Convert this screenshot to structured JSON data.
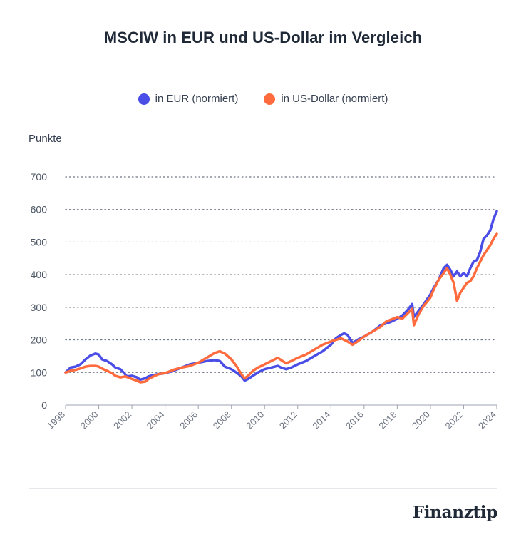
{
  "title": "MSCIW in EUR und US-Dollar im Vergleich",
  "brand": "Finanztip",
  "colors": {
    "eur": "#4a4de6",
    "usd": "#ff6b3d",
    "grid": "#6b7280",
    "axis": "#9ca3af"
  },
  "chart_data": {
    "type": "line",
    "ylabel": "Punkte",
    "ylim": [
      0,
      700
    ],
    "xlim": [
      1998,
      2024
    ],
    "yticks": [
      0,
      100,
      200,
      300,
      400,
      500,
      600,
      700
    ],
    "xticks": [
      1998,
      2000,
      2002,
      2004,
      2006,
      2008,
      2010,
      2012,
      2014,
      2016,
      2018,
      2020,
      2022,
      2024
    ],
    "grid": "horizontal dotted",
    "legend_position": "top-center",
    "series": [
      {
        "name": "in EUR (normiert)",
        "color": "#4a4de6",
        "points": [
          [
            1998.0,
            100
          ],
          [
            1998.3,
            115
          ],
          [
            1998.6,
            118
          ],
          [
            1998.9,
            125
          ],
          [
            1999.2,
            140
          ],
          [
            1999.5,
            152
          ],
          [
            1999.8,
            158
          ],
          [
            2000.0,
            155
          ],
          [
            2000.2,
            140
          ],
          [
            2000.5,
            135
          ],
          [
            2000.8,
            125
          ],
          [
            2001.0,
            115
          ],
          [
            2001.3,
            110
          ],
          [
            2001.5,
            100
          ],
          [
            2001.7,
            88
          ],
          [
            2002.0,
            90
          ],
          [
            2002.3,
            85
          ],
          [
            2002.5,
            78
          ],
          [
            2002.8,
            82
          ],
          [
            2003.0,
            88
          ],
          [
            2003.3,
            92
          ],
          [
            2003.6,
            95
          ],
          [
            2004.0,
            98
          ],
          [
            2004.5,
            105
          ],
          [
            2005.0,
            115
          ],
          [
            2005.5,
            125
          ],
          [
            2006.0,
            130
          ],
          [
            2006.5,
            135
          ],
          [
            2007.0,
            138
          ],
          [
            2007.3,
            135
          ],
          [
            2007.6,
            118
          ],
          [
            2008.0,
            110
          ],
          [
            2008.3,
            100
          ],
          [
            2008.6,
            88
          ],
          [
            2008.8,
            75
          ],
          [
            2009.0,
            80
          ],
          [
            2009.3,
            90
          ],
          [
            2009.6,
            100
          ],
          [
            2010.0,
            110
          ],
          [
            2010.4,
            115
          ],
          [
            2010.8,
            120
          ],
          [
            2011.0,
            115
          ],
          [
            2011.3,
            110
          ],
          [
            2011.6,
            115
          ],
          [
            2012.0,
            125
          ],
          [
            2012.5,
            135
          ],
          [
            2013.0,
            150
          ],
          [
            2013.5,
            165
          ],
          [
            2014.0,
            185
          ],
          [
            2014.3,
            205
          ],
          [
            2014.6,
            215
          ],
          [
            2014.8,
            220
          ],
          [
            2015.0,
            215
          ],
          [
            2015.3,
            190
          ],
          [
            2015.6,
            200
          ],
          [
            2016.0,
            210
          ],
          [
            2016.5,
            225
          ],
          [
            2017.0,
            245
          ],
          [
            2017.3,
            250
          ],
          [
            2017.6,
            255
          ],
          [
            2018.0,
            265
          ],
          [
            2018.3,
            275
          ],
          [
            2018.6,
            290
          ],
          [
            2018.9,
            310
          ],
          [
            2019.0,
            270
          ],
          [
            2019.3,
            290
          ],
          [
            2019.6,
            310
          ],
          [
            2020.0,
            340
          ],
          [
            2020.2,
            360
          ],
          [
            2020.5,
            385
          ],
          [
            2020.8,
            420
          ],
          [
            2021.0,
            430
          ],
          [
            2021.2,
            415
          ],
          [
            2021.4,
            395
          ],
          [
            2021.6,
            410
          ],
          [
            2021.8,
            395
          ],
          [
            2022.0,
            405
          ],
          [
            2022.2,
            395
          ],
          [
            2022.4,
            420
          ],
          [
            2022.6,
            440
          ],
          [
            2022.8,
            445
          ],
          [
            2023.0,
            470
          ],
          [
            2023.2,
            510
          ],
          [
            2023.4,
            520
          ],
          [
            2023.6,
            535
          ],
          [
            2023.8,
            570
          ],
          [
            2024.0,
            595
          ]
        ]
      },
      {
        "name": "in US-Dollar (normiert)",
        "color": "#ff6b3d",
        "points": [
          [
            1998.0,
            100
          ],
          [
            1998.3,
            105
          ],
          [
            1998.6,
            108
          ],
          [
            1998.9,
            112
          ],
          [
            1999.2,
            118
          ],
          [
            1999.5,
            120
          ],
          [
            1999.8,
            120
          ],
          [
            2000.0,
            118
          ],
          [
            2000.2,
            112
          ],
          [
            2000.5,
            105
          ],
          [
            2000.8,
            98
          ],
          [
            2001.0,
            90
          ],
          [
            2001.3,
            85
          ],
          [
            2001.6,
            88
          ],
          [
            2001.9,
            82
          ],
          [
            2002.0,
            80
          ],
          [
            2002.3,
            75
          ],
          [
            2002.5,
            70
          ],
          [
            2002.8,
            72
          ],
          [
            2003.0,
            80
          ],
          [
            2003.3,
            88
          ],
          [
            2003.6,
            95
          ],
          [
            2004.0,
            98
          ],
          [
            2004.5,
            108
          ],
          [
            2005.0,
            115
          ],
          [
            2005.5,
            120
          ],
          [
            2006.0,
            130
          ],
          [
            2006.5,
            145
          ],
          [
            2007.0,
            160
          ],
          [
            2007.3,
            165
          ],
          [
            2007.6,
            158
          ],
          [
            2008.0,
            140
          ],
          [
            2008.3,
            120
          ],
          [
            2008.6,
            95
          ],
          [
            2008.8,
            82
          ],
          [
            2009.0,
            90
          ],
          [
            2009.3,
            105
          ],
          [
            2009.6,
            115
          ],
          [
            2010.0,
            125
          ],
          [
            2010.4,
            135
          ],
          [
            2010.8,
            145
          ],
          [
            2011.0,
            138
          ],
          [
            2011.3,
            128
          ],
          [
            2011.6,
            135
          ],
          [
            2012.0,
            145
          ],
          [
            2012.5,
            155
          ],
          [
            2013.0,
            170
          ],
          [
            2013.5,
            185
          ],
          [
            2014.0,
            195
          ],
          [
            2014.3,
            200
          ],
          [
            2014.6,
            205
          ],
          [
            2014.8,
            200
          ],
          [
            2015.0,
            195
          ],
          [
            2015.3,
            185
          ],
          [
            2015.6,
            195
          ],
          [
            2016.0,
            210
          ],
          [
            2016.5,
            225
          ],
          [
            2017.0,
            240
          ],
          [
            2017.3,
            255
          ],
          [
            2017.6,
            262
          ],
          [
            2018.0,
            270
          ],
          [
            2018.3,
            265
          ],
          [
            2018.6,
            280
          ],
          [
            2018.9,
            295
          ],
          [
            2019.0,
            245
          ],
          [
            2019.3,
            280
          ],
          [
            2019.6,
            305
          ],
          [
            2020.0,
            330
          ],
          [
            2020.2,
            355
          ],
          [
            2020.5,
            385
          ],
          [
            2020.8,
            405
          ],
          [
            2021.0,
            420
          ],
          [
            2021.2,
            400
          ],
          [
            2021.4,
            375
          ],
          [
            2021.6,
            320
          ],
          [
            2021.8,
            345
          ],
          [
            2022.0,
            360
          ],
          [
            2022.2,
            375
          ],
          [
            2022.4,
            380
          ],
          [
            2022.6,
            395
          ],
          [
            2022.8,
            420
          ],
          [
            2023.0,
            440
          ],
          [
            2023.2,
            460
          ],
          [
            2023.4,
            475
          ],
          [
            2023.6,
            490
          ],
          [
            2023.8,
            510
          ],
          [
            2024.0,
            525
          ]
        ]
      }
    ]
  }
}
